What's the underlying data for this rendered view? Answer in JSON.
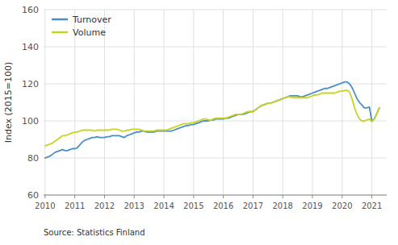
{
  "chart_data": {
    "type": "line",
    "ylabel": "Index (2015=100)",
    "source": "Source: Statistics Finland",
    "xlim": [
      2009.95,
      2021.5
    ],
    "xticks": [
      2010,
      2011,
      2012,
      2013,
      2014,
      2015,
      2016,
      2017,
      2018,
      2019,
      2020,
      2021
    ],
    "ylim": [
      60,
      160
    ],
    "yticks": [
      60,
      80,
      100,
      120,
      140,
      160
    ],
    "grid": true,
    "legend": "upper left",
    "x": [
      2010.0,
      2010.083,
      2010.167,
      2010.25,
      2010.333,
      2010.417,
      2010.5,
      2010.583,
      2010.667,
      2010.75,
      2010.833,
      2010.917,
      2011.0,
      2011.083,
      2011.167,
      2011.25,
      2011.333,
      2011.417,
      2011.5,
      2011.583,
      2011.667,
      2011.75,
      2011.833,
      2011.917,
      2012.0,
      2012.083,
      2012.167,
      2012.25,
      2012.333,
      2012.417,
      2012.5,
      2012.583,
      2012.667,
      2012.75,
      2012.833,
      2012.917,
      2013.0,
      2013.083,
      2013.167,
      2013.25,
      2013.333,
      2013.417,
      2013.5,
      2013.583,
      2013.667,
      2013.75,
      2013.833,
      2013.917,
      2014.0,
      2014.083,
      2014.167,
      2014.25,
      2014.333,
      2014.417,
      2014.5,
      2014.583,
      2014.667,
      2014.75,
      2014.833,
      2014.917,
      2015.0,
      2015.083,
      2015.167,
      2015.25,
      2015.333,
      2015.417,
      2015.5,
      2015.583,
      2015.667,
      2015.75,
      2015.833,
      2015.917,
      2016.0,
      2016.083,
      2016.167,
      2016.25,
      2016.333,
      2016.417,
      2016.5,
      2016.583,
      2016.667,
      2016.75,
      2016.833,
      2016.917,
      2017.0,
      2017.083,
      2017.167,
      2017.25,
      2017.333,
      2017.417,
      2017.5,
      2017.583,
      2017.667,
      2017.75,
      2017.833,
      2017.917,
      2018.0,
      2018.083,
      2018.167,
      2018.25,
      2018.333,
      2018.417,
      2018.5,
      2018.583,
      2018.667,
      2018.75,
      2018.833,
      2018.917,
      2019.0,
      2019.083,
      2019.167,
      2019.25,
      2019.333,
      2019.417,
      2019.5,
      2019.583,
      2019.667,
      2019.75,
      2019.833,
      2019.917,
      2020.0,
      2020.083,
      2020.167,
      2020.25,
      2020.333,
      2020.417,
      2020.5,
      2020.583,
      2020.667,
      2020.75,
      2020.833,
      2020.917,
      2021.0,
      2021.083,
      2021.167,
      2021.25
    ],
    "series": [
      {
        "name": "Turnover",
        "color": "#4a90c4",
        "values": [
          80,
          80.5,
          81,
          82,
          83,
          83.5,
          84,
          84.5,
          84,
          84,
          84.5,
          85,
          85,
          85.5,
          87,
          88.5,
          89.5,
          90,
          90.5,
          91,
          91,
          91.5,
          91,
          91,
          91,
          91.5,
          91.5,
          92,
          92,
          92,
          92,
          91.5,
          91,
          92,
          92.5,
          93,
          93.5,
          94,
          94,
          94.5,
          94.5,
          94,
          94,
          94,
          94,
          94.5,
          94.5,
          94.5,
          94.5,
          94.5,
          94.5,
          94.5,
          95,
          95.5,
          96,
          96.5,
          97,
          97.5,
          97.5,
          98,
          98,
          98.5,
          99,
          99.5,
          100,
          100,
          100,
          100.5,
          100.5,
          101,
          101,
          101,
          101,
          101.5,
          101.5,
          102,
          102.5,
          103,
          103.5,
          103.5,
          103.5,
          104,
          104.5,
          105,
          105,
          106,
          107,
          108,
          108.5,
          109,
          109.5,
          109.5,
          110,
          110.5,
          111,
          111.5,
          112,
          112.5,
          113,
          113.5,
          113.5,
          113.5,
          113.5,
          113,
          113,
          113.5,
          114,
          114.5,
          115,
          115.5,
          116,
          116.5,
          117,
          117.5,
          117.5,
          118,
          118.5,
          119,
          119.5,
          120,
          120.5,
          121,
          121,
          120,
          118,
          115,
          112,
          110,
          108.5,
          107,
          107,
          107.5,
          100,
          101,
          104,
          107
        ]
      },
      {
        "name": "Volume",
        "color": "#c8d420",
        "values": [
          86.5,
          87,
          87.5,
          88,
          89,
          90,
          91,
          92,
          92,
          92.5,
          93,
          93.5,
          94,
          94,
          94.5,
          95,
          95,
          95,
          95,
          95,
          94.5,
          95,
          95,
          95,
          95,
          95,
          95,
          95.5,
          95.5,
          95.5,
          95,
          94.5,
          94.5,
          95,
          95,
          95.5,
          95.5,
          95.5,
          95.5,
          95,
          94.5,
          94.5,
          94.5,
          94.5,
          94.5,
          95,
          95,
          95,
          95,
          95,
          95.5,
          96,
          96.5,
          97,
          97.5,
          98,
          98.5,
          98.5,
          98.5,
          99,
          99,
          99.5,
          100,
          100.5,
          101,
          101,
          100.5,
          100.5,
          101,
          101.5,
          101.5,
          101.5,
          101.5,
          101.5,
          102,
          102.5,
          103,
          103.5,
          103.5,
          103.5,
          104,
          104.5,
          105,
          105,
          105,
          106,
          107,
          108,
          108.5,
          109,
          109.5,
          109.5,
          110,
          110.5,
          111,
          111.5,
          112,
          112.5,
          113,
          113,
          112.5,
          112.5,
          112.5,
          112.5,
          112.5,
          112.5,
          112.5,
          113,
          113.5,
          114,
          114,
          114.5,
          115,
          115,
          115,
          115,
          115,
          115,
          115.5,
          116,
          116,
          116.5,
          116.5,
          115.5,
          112,
          107,
          103.5,
          101,
          100,
          100,
          100.5,
          101,
          99.5,
          101,
          104,
          107
        ]
      }
    ]
  }
}
